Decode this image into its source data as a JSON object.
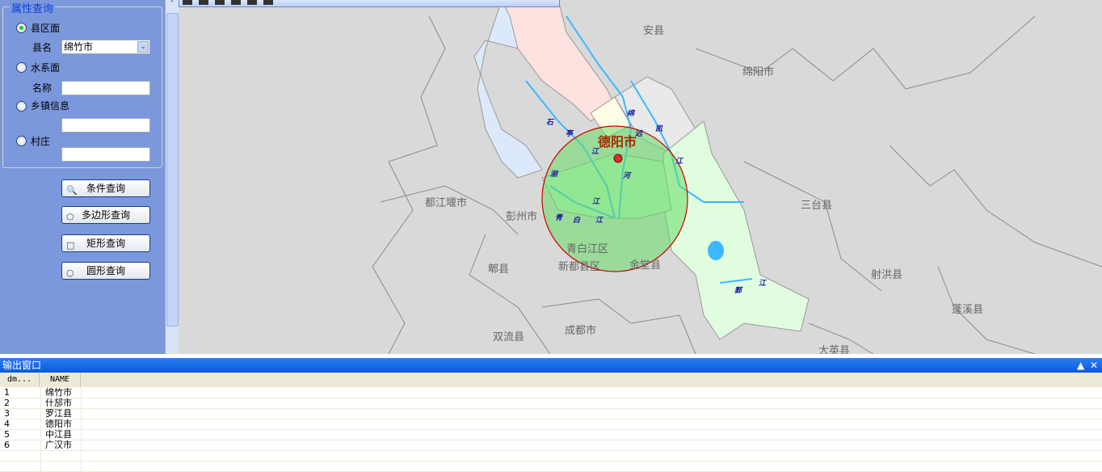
{
  "query_panel": {
    "group_title": "属性查询",
    "options": [
      {
        "label": "县区面",
        "selected": true,
        "field_label": "县名",
        "field_value": "绵竹市",
        "field_type": "dropdown"
      },
      {
        "label": "水系面",
        "selected": false,
        "field_label": "名称",
        "field_value": "",
        "field_type": "text"
      },
      {
        "label": "乡镇信息",
        "selected": false,
        "field_label": "",
        "field_value": "",
        "field_type": "text"
      },
      {
        "label": "村庄",
        "selected": false,
        "field_label": "",
        "field_value": "",
        "field_type": "text"
      }
    ],
    "buttons": [
      "条件查询",
      "多边形查询",
      "矩形查询",
      "圆形查询"
    ]
  },
  "map": {
    "labels": [
      "安县",
      "绵阳市",
      "三台县",
      "都江堰市",
      "彭州市",
      "青白江区",
      "新都县区",
      "金堂县",
      "郫县",
      "射洪县",
      "蓬溪县",
      "双流县",
      "成都市",
      "大英县"
    ],
    "highlight_label": "德阳市",
    "rivers": [
      "石",
      "亭",
      "江",
      "绵",
      "远",
      "河",
      "凯",
      "江",
      "湔",
      "江",
      "青",
      "白",
      "江",
      "郪",
      "江"
    ],
    "circle_fill": "#66dd66",
    "circle_stroke": "#cc0000"
  },
  "output": {
    "title": "输出窗口",
    "pin_icon": "pin-icon",
    "close_icon": "close-icon",
    "columns": [
      "dm...",
      "NAME"
    ],
    "rows": [
      [
        "1",
        "绵竹市"
      ],
      [
        "2",
        "什邡市"
      ],
      [
        "3",
        "罗江县"
      ],
      [
        "4",
        "德阳市"
      ],
      [
        "5",
        "中江县"
      ],
      [
        "6",
        "广汉市"
      ]
    ]
  }
}
